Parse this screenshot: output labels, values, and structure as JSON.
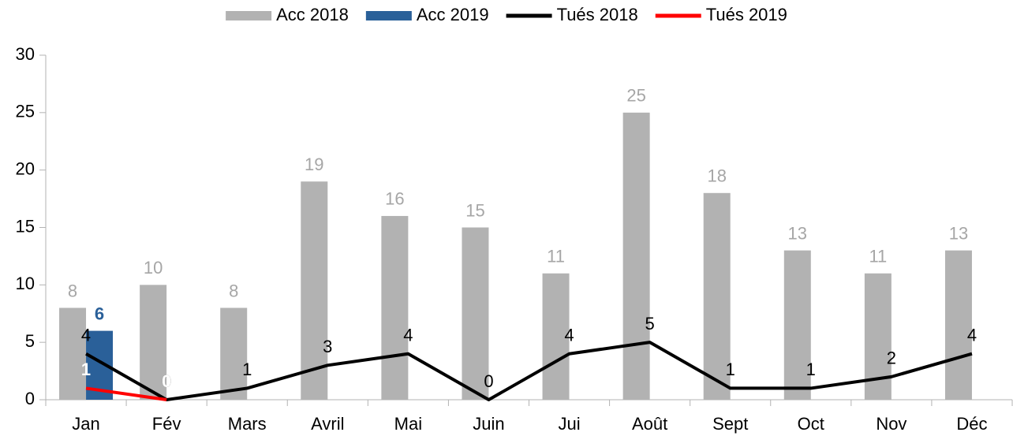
{
  "chart_data": {
    "type": "bar",
    "categories": [
      "Jan",
      "Fév",
      "Mars",
      "Avril",
      "Mai",
      "Juin",
      "Jui",
      "Août",
      "Sept",
      "Oct",
      "Nov",
      "Déc"
    ],
    "series": [
      {
        "name": "Acc 2018",
        "type": "bar",
        "color": "#b2b2b2",
        "label_color": "#a6a6a6",
        "label_bold": false,
        "values": [
          8,
          10,
          8,
          19,
          16,
          15,
          11,
          25,
          18,
          13,
          11,
          13
        ]
      },
      {
        "name": "Acc 2019",
        "type": "bar",
        "color": "#2a6099",
        "label_color": "#2a6099",
        "label_bold": true,
        "values": [
          6,
          null,
          null,
          null,
          null,
          null,
          null,
          null,
          null,
          null,
          null,
          null
        ]
      },
      {
        "name": "Tués 2018",
        "type": "line",
        "color": "#000000",
        "label_color": "#000000",
        "label_bold": false,
        "values": [
          4,
          0,
          1,
          3,
          4,
          0,
          4,
          5,
          1,
          1,
          2,
          4
        ]
      },
      {
        "name": "Tués 2019",
        "type": "line",
        "color": "#ff0000",
        "label_color": "#ffffff",
        "label_bold": true,
        "values": [
          1,
          0,
          null,
          null,
          null,
          null,
          null,
          null,
          null,
          null,
          null,
          null
        ]
      }
    ],
    "ylim": [
      0,
      30
    ],
    "yticks": [
      0,
      5,
      10,
      15,
      20,
      25,
      30
    ],
    "grid": false,
    "legend": "top"
  }
}
